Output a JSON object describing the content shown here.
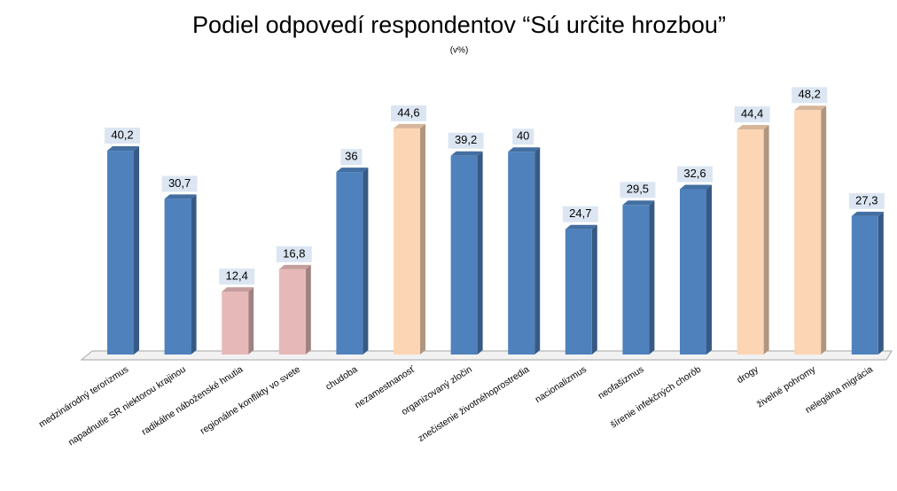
{
  "chart_data": {
    "type": "bar3d",
    "title": "Podiel odpovedí  respondentov “Sú určite hrozbou”",
    "subtitle": "(v%)",
    "categories": [
      "medzinárodný terorizmus",
      "napadnutie SR niektorou krajinou",
      "radikálne náboženské hnutia",
      "regionálne konflikty vo svete",
      "chudoba",
      "nezamestnanosť",
      "organizovaný zločin",
      "znečistenie životnéhoprostredia",
      "nacionalizmus",
      "neofašizmus",
      "šírenie infekčných chorôb",
      "drogy",
      "živelné pohromy",
      "nelegálna migrácia"
    ],
    "values": [
      40.2,
      30.7,
      12.4,
      16.8,
      36,
      44.6,
      39.2,
      40,
      24.7,
      29.5,
      32.6,
      44.4,
      48.2,
      27.3
    ],
    "value_labels": [
      "40,2",
      "30,7",
      "12,4",
      "16,8",
      "36",
      "44,6",
      "39,2",
      "40",
      "24,7",
      "29,5",
      "32,6",
      "44,4",
      "48,2",
      "27,3"
    ],
    "colors": [
      "#4f81bd",
      "#4f81bd",
      "#e6b9b8",
      "#e6b9b8",
      "#4f81bd",
      "#fcd5b5",
      "#4f81bd",
      "#4f81bd",
      "#4f81bd",
      "#4f81bd",
      "#4f81bd",
      "#fcd5b5",
      "#fcd5b5",
      "#4f81bd"
    ]
  }
}
